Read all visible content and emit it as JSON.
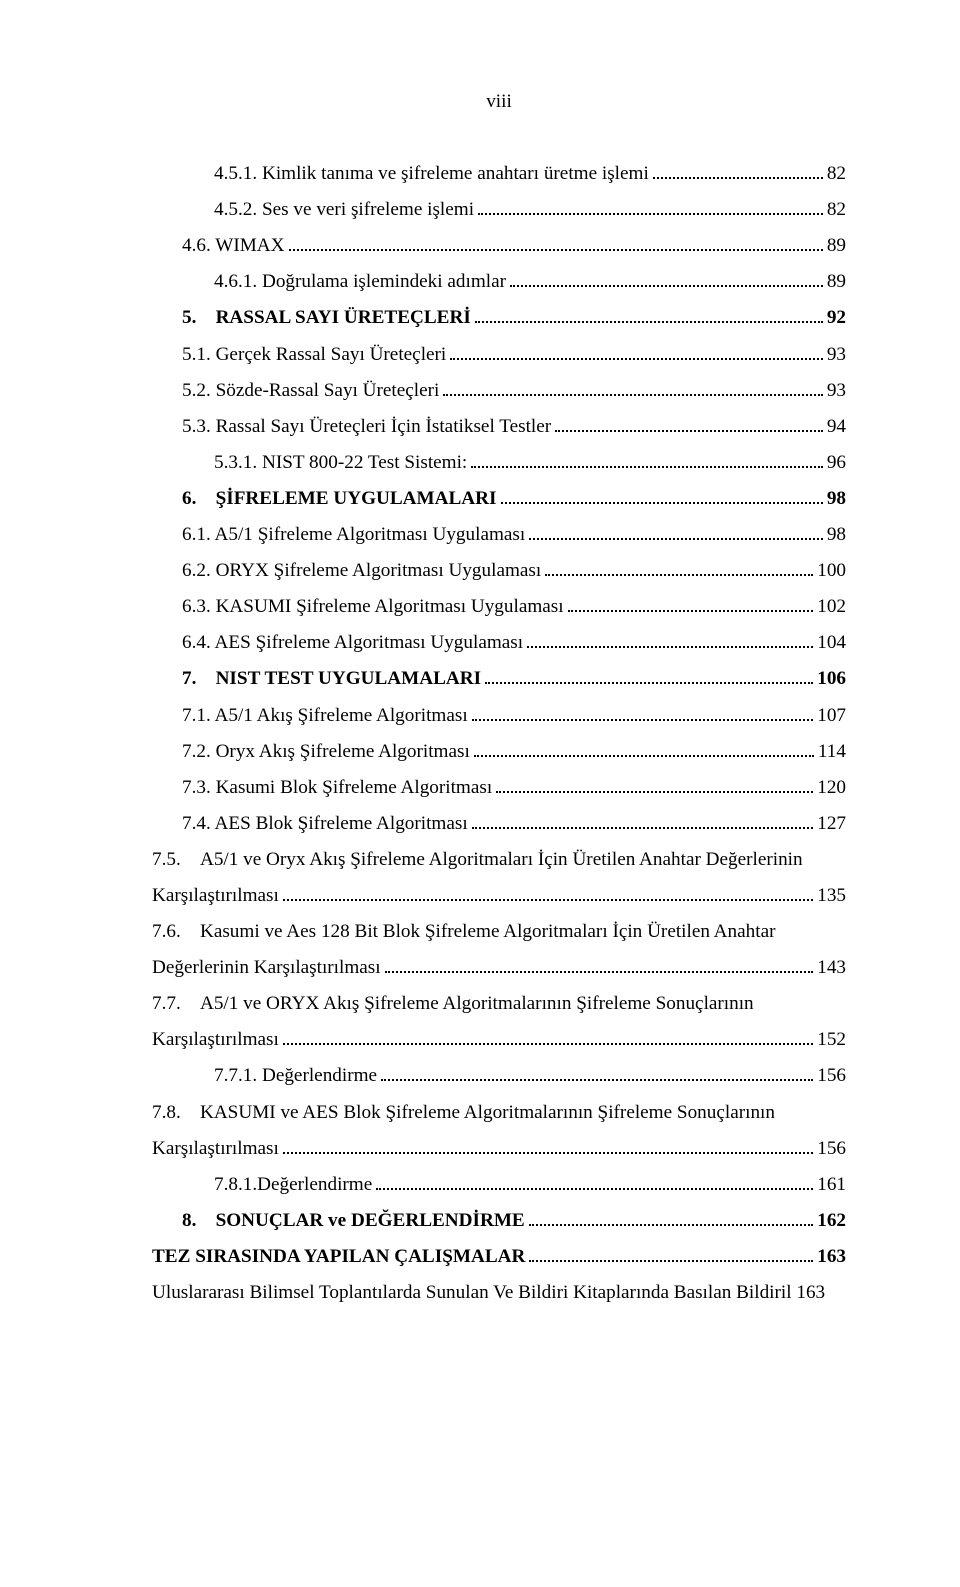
{
  "page_marker": "viii",
  "entries": [
    {
      "indent": 2,
      "bold": false,
      "label": "4.5.1. Kimlik tanıma ve şifreleme anahtarı üretme işlemi",
      "page": "82"
    },
    {
      "indent": 2,
      "bold": false,
      "label": "4.5.2. Ses ve veri şifreleme işlemi",
      "page": "82"
    },
    {
      "indent": 1,
      "bold": false,
      "label": "4.6. WIMAX",
      "page": "89"
    },
    {
      "indent": 2,
      "bold": false,
      "label": "4.6.1. Doğrulama işlemindeki adımlar",
      "page": "89"
    },
    {
      "indent": 0,
      "bold": true,
      "label": "5. RASSAL SAYI ÜRETEÇLERİ",
      "page": "92"
    },
    {
      "indent": 1,
      "bold": false,
      "label": "5.1. Gerçek Rassal Sayı Üreteçleri",
      "page": "93"
    },
    {
      "indent": 1,
      "bold": false,
      "label": "5.2. Sözde-Rassal Sayı Üreteçleri",
      "page": "93"
    },
    {
      "indent": 1,
      "bold": false,
      "label": "5.3. Rassal Sayı Üreteçleri İçin İstatiksel Testler",
      "page": "94"
    },
    {
      "indent": 2,
      "bold": false,
      "label": "5.3.1. NIST 800-22 Test Sistemi:",
      "page": "96"
    },
    {
      "indent": 0,
      "bold": true,
      "label": "6. ŞİFRELEME UYGULAMALARI",
      "page": "98"
    },
    {
      "indent": 1,
      "bold": false,
      "label": "6.1. A5/1 Şifreleme Algoritması Uygulaması",
      "page": "98"
    },
    {
      "indent": 1,
      "bold": false,
      "label": "6.2. ORYX Şifreleme Algoritması Uygulaması",
      "page": "100"
    },
    {
      "indent": 1,
      "bold": false,
      "label": "6.3. KASUMI Şifreleme Algoritması Uygulaması",
      "page": "102"
    },
    {
      "indent": 1,
      "bold": false,
      "label": "6.4. AES Şifreleme Algoritması Uygulaması",
      "page": "104"
    },
    {
      "indent": 0,
      "bold": true,
      "label": "7. NIST TEST UYGULAMALARI",
      "page": "106"
    },
    {
      "indent": 1,
      "bold": false,
      "label": "7.1. A5/1 Akış Şifreleme Algoritması",
      "page": "107"
    },
    {
      "indent": 1,
      "bold": false,
      "label": "7.2. Oryx Akış Şifreleme Algoritması",
      "page": "114"
    },
    {
      "indent": 1,
      "bold": false,
      "label": "7.3. Kasumi Blok Şifreleme Algoritması",
      "page": "120"
    },
    {
      "indent": 1,
      "bold": false,
      "label": "7.4. AES Blok Şifreleme Algoritması",
      "page": "127"
    },
    {
      "indent": 1,
      "bold": false,
      "wrap": true,
      "label_line1": "7.5. A5/1 ve Oryx Akış Şifreleme Algoritmaları İçin Üretilen Anahtar Değerlerinin",
      "label_line2": "Karşılaştırılması",
      "page": "135"
    },
    {
      "indent": 1,
      "bold": false,
      "wrap": true,
      "label_line1": "7.6. Kasumi ve Aes 128 Bit Blok Şifreleme Algoritmaları İçin Üretilen Anahtar",
      "label_line2": "Değerlerinin Karşılaştırılması",
      "page": "143"
    },
    {
      "indent": 1,
      "bold": false,
      "wrap": true,
      "label_line1": "7.7. A5/1 ve ORYX Akış Şifreleme Algoritmalarının Şifreleme  Sonuçlarının",
      "label_line2": "Karşılaştırılması",
      "page": "152"
    },
    {
      "indent": 2,
      "bold": false,
      "label": "7.7.1. Değerlendirme",
      "page": "156"
    },
    {
      "indent": 1,
      "bold": false,
      "wrap": true,
      "label_line1": "7.8. KASUMI ve AES Blok Şifreleme Algoritmalarının Şifreleme  Sonuçlarının",
      "label_line2": "Karşılaştırılması",
      "page": "156"
    },
    {
      "indent": 2,
      "bold": false,
      "label": "7.8.1.Değerlendirme",
      "page": "161"
    },
    {
      "indent": 0,
      "bold": true,
      "label": "8. SONUÇLAR ve DEĞERLENDİRME",
      "page": "162"
    },
    {
      "indent": 0,
      "bold": true,
      "heading": true,
      "label": "TEZ SIRASINDA YAPILAN ÇALIŞMALAR",
      "page": "163"
    },
    {
      "indent": 0,
      "bold": false,
      "tail": true,
      "label": "Uluslararası Bilimsel Toplantılarda Sunulan Ve Bildiri Kitaplarında Basılan Bildiril 163"
    }
  ]
}
